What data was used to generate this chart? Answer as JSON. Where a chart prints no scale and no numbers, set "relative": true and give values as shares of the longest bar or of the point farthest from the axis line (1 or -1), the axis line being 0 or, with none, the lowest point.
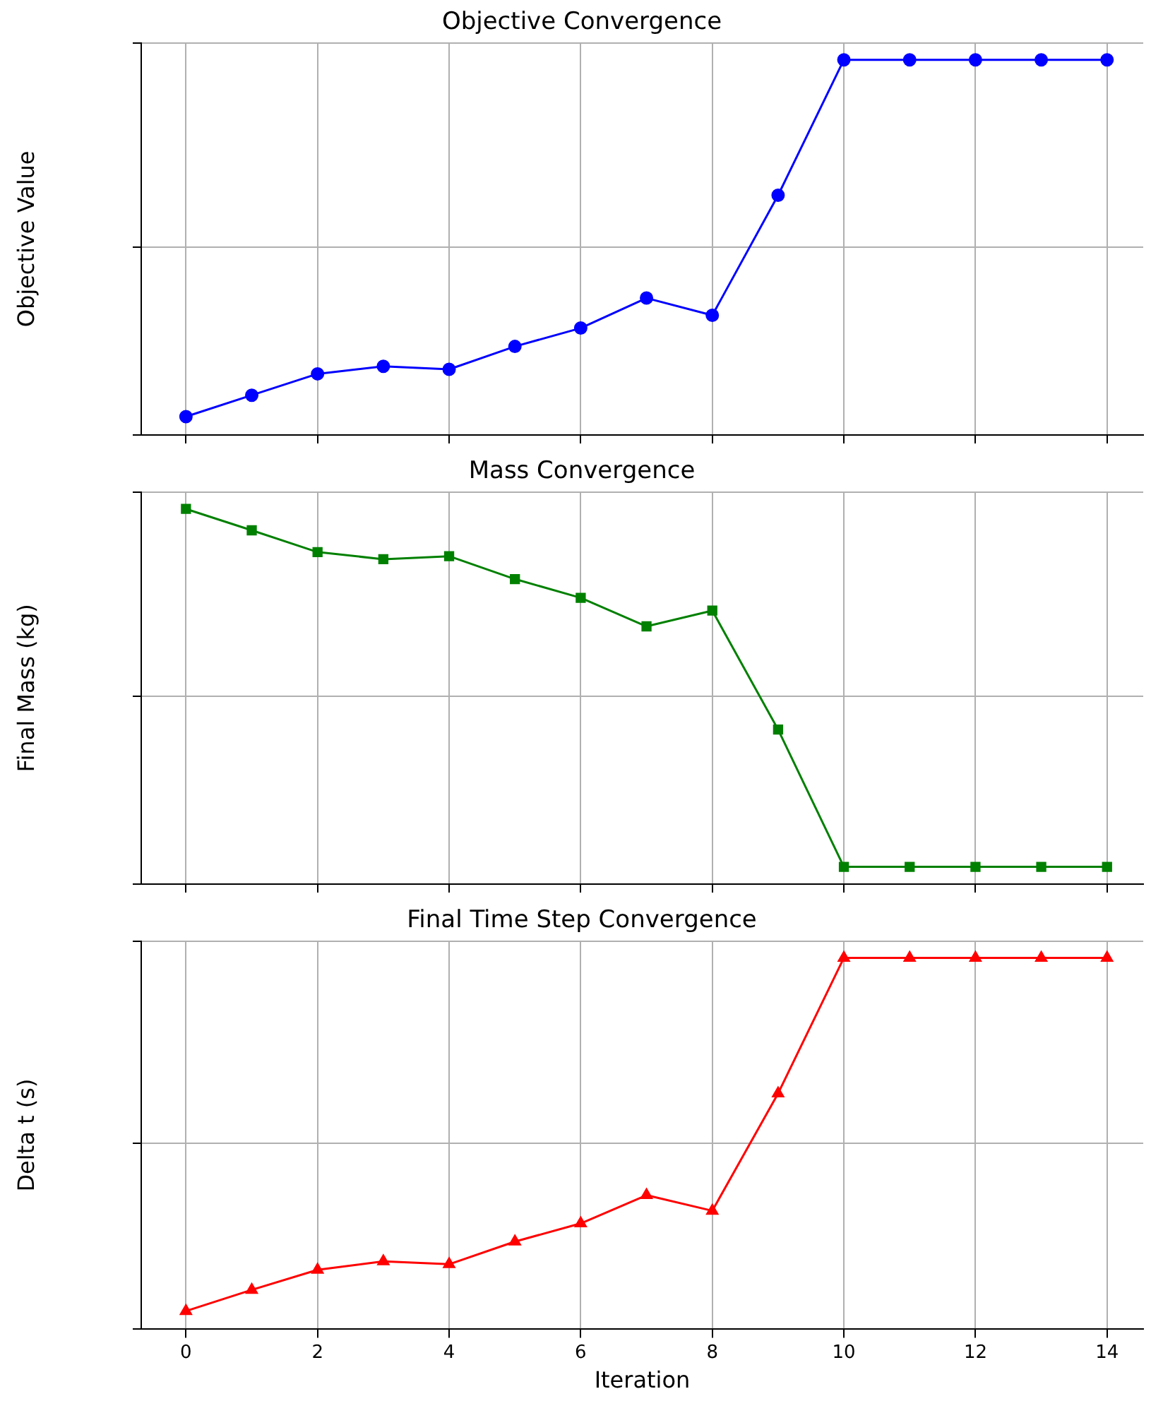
{
  "chart_data": [
    {
      "type": "line",
      "title": "Objective Convergence",
      "ylabel": "Objective Value",
      "relative": true,
      "x": [
        0,
        1,
        2,
        3,
        4,
        5,
        6,
        7,
        8,
        9,
        10,
        11,
        12,
        13,
        14
      ],
      "xlim": [
        -0.68,
        14.55
      ],
      "xticks": [
        0,
        2,
        4,
        6,
        8,
        10,
        12,
        14
      ],
      "tick_labels": false,
      "grid": true,
      "legend": false,
      "marker": "circle",
      "line_style": "solid",
      "series": [
        {
          "color": "#0000ff",
          "values": [
            0.049,
            0.106,
            0.163,
            0.183,
            0.175,
            0.236,
            0.285,
            0.365,
            0.319,
            0.639,
            1,
            1,
            1,
            1,
            1
          ]
        }
      ]
    },
    {
      "type": "line",
      "title": "Mass Convergence",
      "ylabel": "Final Mass (kg)",
      "relative": true,
      "x": [
        0,
        1,
        2,
        3,
        4,
        5,
        6,
        7,
        8,
        9,
        10,
        11,
        12,
        13,
        14
      ],
      "xlim": [
        -0.68,
        14.55
      ],
      "xticks": [
        0,
        2,
        4,
        6,
        8,
        10,
        12,
        14
      ],
      "tick_labels": false,
      "grid": true,
      "legend": false,
      "marker": "square",
      "line_style": "solid",
      "series": [
        {
          "color": "#008000",
          "values": [
            1,
            0.943,
            0.885,
            0.866,
            0.874,
            0.813,
            0.763,
            0.687,
            0.729,
            0.412,
            0.046,
            0.046,
            0.046,
            0.046,
            0.046
          ]
        }
      ]
    },
    {
      "type": "line",
      "title": "Final Time Step Convergence",
      "xlabel": "Iteration",
      "ylabel": "Delta t (s)",
      "relative": true,
      "x": [
        0,
        1,
        2,
        3,
        4,
        5,
        6,
        7,
        8,
        9,
        10,
        11,
        12,
        13,
        14
      ],
      "xlim": [
        -0.68,
        14.55
      ],
      "xticks": [
        0,
        2,
        4,
        6,
        8,
        10,
        12,
        14
      ],
      "tick_labels": "x",
      "grid": true,
      "legend": false,
      "marker": "triangle",
      "line_style": "solid",
      "series": [
        {
          "color": "#ff0000",
          "values": [
            0.049,
            0.106,
            0.16,
            0.183,
            0.175,
            0.236,
            0.285,
            0.361,
            0.319,
            0.635,
            1,
            1,
            1,
            1,
            1
          ]
        }
      ]
    }
  ]
}
